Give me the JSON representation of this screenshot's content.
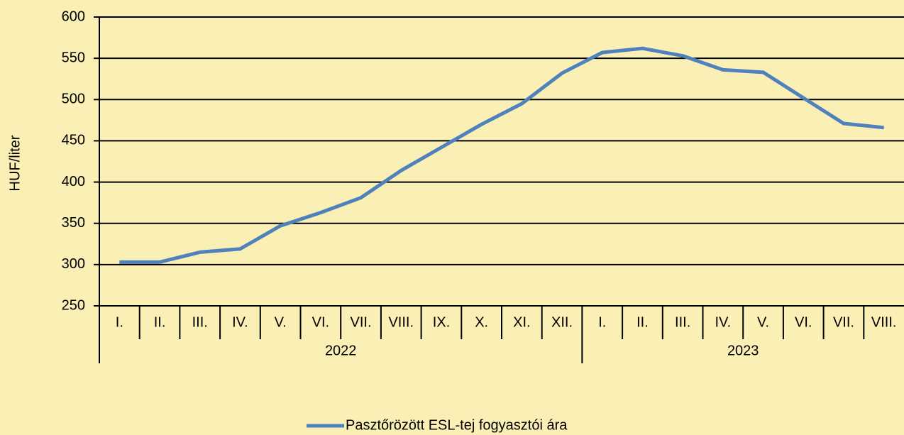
{
  "chart_data": {
    "type": "line",
    "y_label": "HUF/liter",
    "category_groups": [
      {
        "label": "2022",
        "categories": [
          "I.",
          "II.",
          "III.",
          "IV.",
          "V.",
          "VI.",
          "VII.",
          "VIII.",
          "IX.",
          "X.",
          "XI.",
          "XII."
        ]
      },
      {
        "label": "2023",
        "categories": [
          "I.",
          "II.",
          "III.",
          "IV.",
          "V.",
          "VI.",
          "VII.",
          "VIII."
        ]
      }
    ],
    "series": [
      {
        "name": "Pasztőrözött ESL-tej fogyasztói ára",
        "color": "#4f81bd",
        "values": [
          303,
          303,
          315,
          319,
          347,
          363,
          381,
          414,
          442,
          470,
          495,
          532,
          557,
          562,
          553,
          536,
          533,
          502,
          471,
          466
        ]
      }
    ],
    "ylim": [
      250,
      600
    ],
    "yticks": [
      250,
      300,
      350,
      400,
      450,
      500,
      550,
      600
    ],
    "grid": true,
    "legend": "bottom"
  }
}
